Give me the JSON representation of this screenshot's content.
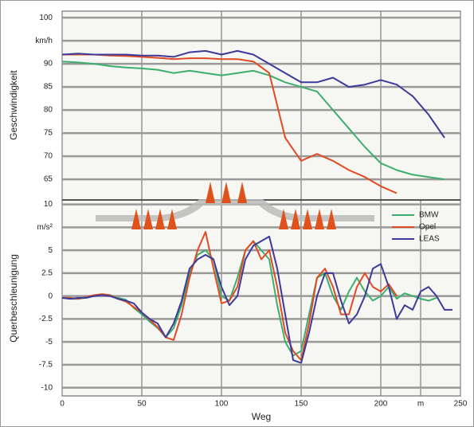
{
  "chart_data": [
    {
      "type": "line",
      "y_label": "Geschwindigkeit",
      "x": [
        0,
        10,
        20,
        30,
        40,
        50,
        60,
        70,
        80,
        90,
        100,
        110,
        120,
        130,
        140,
        150,
        160,
        170,
        180,
        190,
        200,
        210,
        220,
        230,
        240
      ],
      "xlim": [
        0,
        250
      ],
      "xticks": [
        0,
        50,
        100,
        150,
        200,
        250
      ],
      "ylim": [
        60.7,
        101.4
      ],
      "yticks": [
        65,
        70,
        75,
        80,
        85,
        90,
        {
          "value": 95,
          "label": "km/h"
        },
        100
      ],
      "grid": true,
      "series": [
        {
          "color": "#3dae6e",
          "values": [
            90.5,
            90.3,
            90,
            89.5,
            89.2,
            89,
            88.7,
            88,
            88.5,
            88,
            87.5,
            88,
            88.5,
            87.5,
            86,
            85,
            84,
            80,
            76,
            72,
            68.5,
            67,
            66,
            65.5,
            65
          ]
        },
        {
          "color": "#e04a24",
          "values": [
            92,
            92,
            92,
            91.8,
            91.7,
            91.5,
            91.3,
            91,
            91.2,
            91.2,
            91,
            91,
            90.5,
            88,
            74,
            69,
            70.5,
            69,
            67,
            65.5,
            63.5,
            62,
            null,
            null,
            null
          ]
        },
        {
          "color": "#3c3a9a",
          "values": [
            92,
            92.2,
            92,
            92,
            92,
            91.8,
            91.8,
            91.5,
            92.5,
            92.8,
            92,
            92.8,
            92,
            90,
            88,
            86,
            86,
            87,
            85,
            85.5,
            86.5,
            85.5,
            83,
            79,
            74
          ]
        }
      ]
    },
    {
      "type": "line",
      "y_label": "Querbeschleunigung",
      "x_label": "Weg",
      "x": [
        0,
        5,
        10,
        15,
        20,
        25,
        30,
        35,
        40,
        45,
        50,
        55,
        60,
        65,
        70,
        75,
        80,
        85,
        90,
        95,
        100,
        105,
        110,
        115,
        120,
        125,
        130,
        135,
        140,
        145,
        150,
        155,
        160,
        165,
        170,
        175,
        180,
        185,
        190,
        195,
        200,
        205,
        210,
        215,
        220,
        225,
        230,
        235,
        240,
        245
      ],
      "xlim": [
        0,
        250
      ],
      "xticks": [
        0,
        50,
        100,
        150,
        200,
        {
          "value": 225,
          "label": "m"
        },
        250
      ],
      "ylim": [
        -10.9,
        10.4
      ],
      "yticks": [
        -10,
        -7.5,
        -5,
        -2.5,
        0,
        2.5,
        5,
        {
          "value": 7.5,
          "label": "m/s²"
        },
        10
      ],
      "grid": true,
      "legend": "upper right",
      "series": [
        {
          "name": "BMW",
          "color": "#3dae6e",
          "values": [
            -0.2,
            -0.3,
            -0.3,
            -0.2,
            0,
            0.2,
            0.1,
            -0.2,
            -0.4,
            -1.3,
            -2,
            -2.8,
            -3.5,
            -4.5,
            -3.5,
            -1,
            2.5,
            4.5,
            5,
            4,
            0,
            -0.5,
            2,
            5,
            6,
            5,
            4,
            -1,
            -5,
            -6.5,
            -6,
            -2,
            2,
            2.5,
            0,
            -1.5,
            0.5,
            2,
            0.5,
            -0.5,
            0,
            1,
            -0.3,
            0.3,
            0,
            -0.3,
            -0.5,
            -0.2,
            null,
            null
          ]
        },
        {
          "name": "Opel",
          "color": "#e04a24",
          "values": [
            -0.2,
            -0.2,
            -0.3,
            -0.1,
            0.1,
            0.2,
            0.1,
            -0.3,
            -0.6,
            -1.2,
            -1.8,
            -2.6,
            -3.4,
            -4.5,
            -4.8,
            -2,
            2,
            5,
            7,
            3,
            -0.8,
            -0.5,
            1,
            5,
            6,
            4,
            5,
            1,
            -4,
            -6,
            -7,
            -3,
            2,
            3,
            1,
            -2,
            -2,
            1,
            2.5,
            1,
            0.5,
            1.3,
            0,
            null,
            null,
            null,
            null,
            null,
            null,
            null
          ]
        },
        {
          "name": "LEAS",
          "color": "#3c3a9a",
          "values": [
            -0.2,
            -0.3,
            -0.2,
            -0.2,
            0,
            0.1,
            0,
            -0.3,
            -0.5,
            -0.8,
            -1.8,
            -2.5,
            -3,
            -4.5,
            -3,
            -0.5,
            3,
            4,
            4.5,
            4,
            1,
            -1,
            0,
            4,
            5.5,
            6,
            6.5,
            3,
            -2,
            -7,
            -7.3,
            -4,
            0,
            2.5,
            2.5,
            -0.5,
            -3,
            -2,
            0,
            3,
            3.5,
            1,
            -2.5,
            -1,
            -1.5,
            0.5,
            1,
            0,
            -1.5,
            -1.5
          ]
        }
      ]
    }
  ]
}
